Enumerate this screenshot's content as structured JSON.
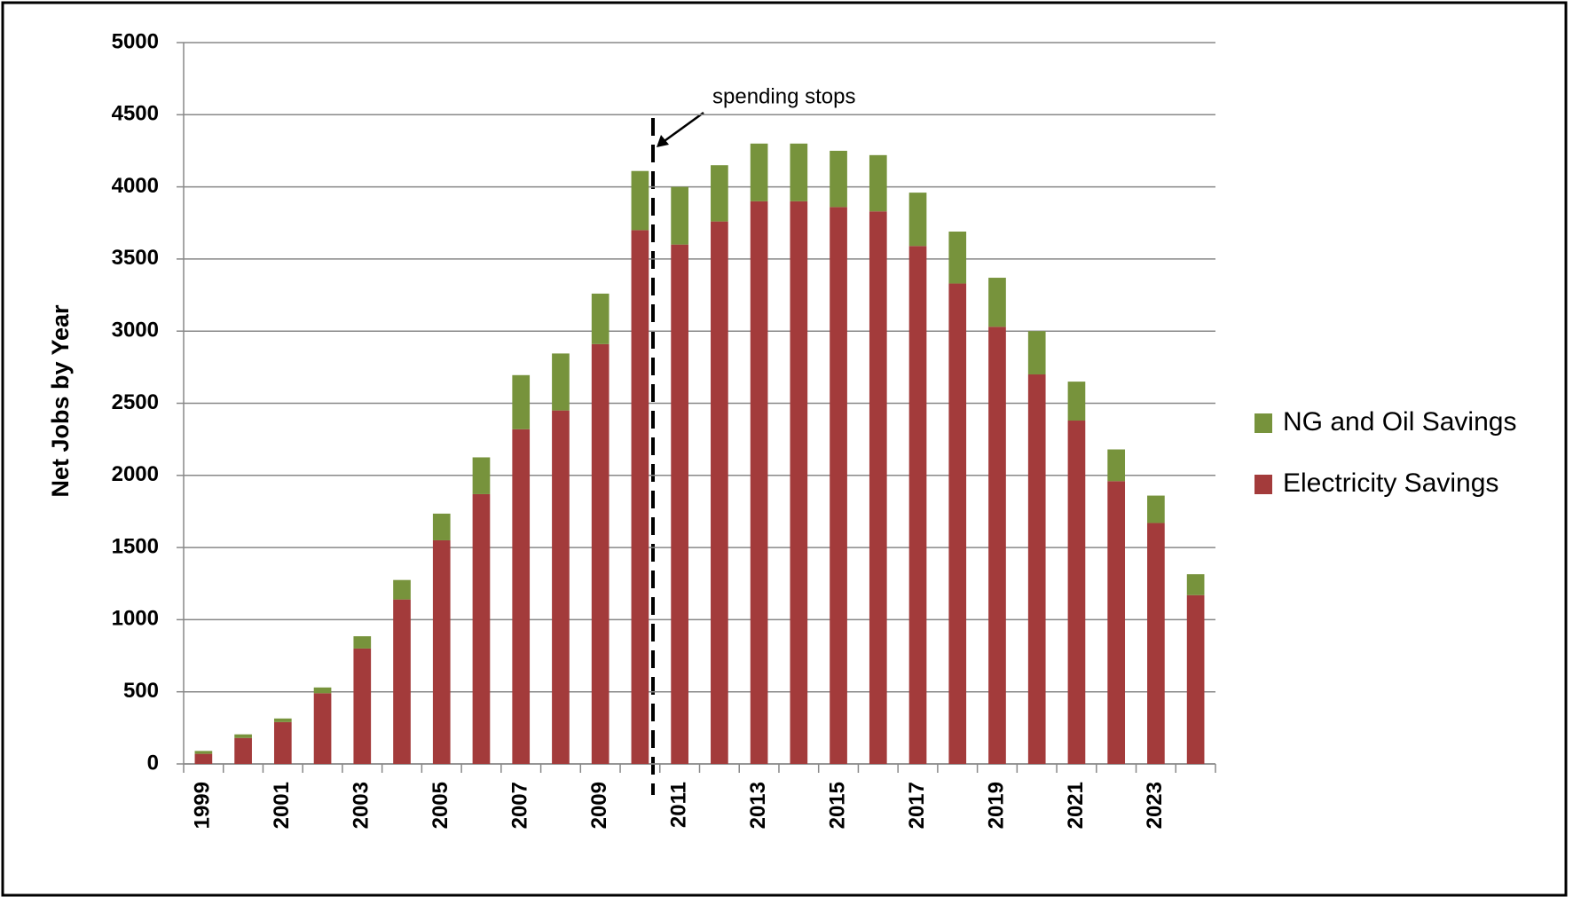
{
  "chart_data": {
    "type": "stacked-bar",
    "y_label": "Net Jobs by Year",
    "annotation": "spending stops",
    "categories": [
      "1999",
      null,
      "2001",
      null,
      "2003",
      null,
      "2005",
      null,
      "2007",
      null,
      "2009",
      null,
      "2011",
      null,
      "2013",
      null,
      "2015",
      null,
      "2017",
      null,
      "2019",
      null,
      "2021",
      null,
      "2023",
      null
    ],
    "series": [
      {
        "name": "Electricity Savings",
        "color": "#a33b3b",
        "values": [
          70,
          180,
          290,
          490,
          800,
          1140,
          1550,
          1870,
          2320,
          2450,
          2910,
          3700,
          3600,
          3760,
          3900,
          3900,
          3860,
          3830,
          3590,
          3330,
          3030,
          2700,
          2380,
          1960,
          1670,
          1170
        ]
      },
      {
        "name": "NG and Oil Savings",
        "color": "#77933c",
        "values": [
          20,
          25,
          25,
          40,
          85,
          135,
          185,
          255,
          375,
          395,
          350,
          410,
          400,
          390,
          400,
          400,
          390,
          390,
          370,
          360,
          340,
          300,
          270,
          220,
          190,
          145
        ]
      }
    ],
    "ylim": [
      0,
      5000
    ],
    "yticks": [
      0,
      500,
      1000,
      1500,
      2000,
      2500,
      3000,
      3500,
      4000,
      4500,
      5000
    ],
    "grid": true,
    "legend": "right"
  }
}
